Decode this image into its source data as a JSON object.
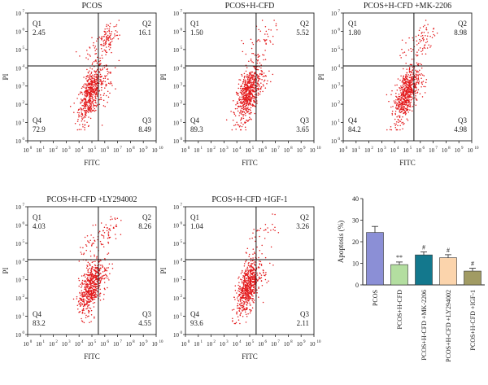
{
  "chart_data": [
    {
      "type": "scatter",
      "title": "PCOS",
      "xlabel": "FITC",
      "ylabel": "PI",
      "axis_scale": "log",
      "xlim": [
        1,
        10000000000
      ],
      "ylim": [
        1,
        10000000
      ],
      "x_ticks": [
        "10",
        "10",
        "10",
        "10",
        "10",
        "10",
        "10",
        "10",
        "10",
        "10",
        "10"
      ],
      "x_tick_exponents": [
        "0",
        "1",
        "2",
        "3",
        "4",
        "5",
        "6",
        "7",
        "8",
        "9",
        "10"
      ],
      "y_ticks": [
        "10",
        "10",
        "10",
        "10",
        "10",
        "10",
        "10",
        "10"
      ],
      "y_tick_exponents": [
        "0",
        "1",
        "2",
        "3",
        "4",
        "5",
        "6",
        "7"
      ],
      "quadrants": [
        {
          "name": "Q1",
          "value": "2.45"
        },
        {
          "name": "Q2",
          "value": "16.1"
        },
        {
          "name": "Q3",
          "value": "8.49"
        },
        {
          "name": "Q4",
          "value": "72.9"
        }
      ],
      "point_color": "#e31a1c",
      "grid": false
    },
    {
      "type": "scatter",
      "title": "PCOS+H-CFD",
      "xlabel": "FITC",
      "ylabel": "PI",
      "axis_scale": "log",
      "xlim": [
        1,
        10000000000
      ],
      "ylim": [
        1,
        10000000
      ],
      "x_ticks": [
        "10",
        "10",
        "10",
        "10",
        "10",
        "10",
        "10",
        "10",
        "10",
        "10",
        "10"
      ],
      "x_tick_exponents": [
        "0",
        "1",
        "2",
        "3",
        "4",
        "5",
        "6",
        "7",
        "8",
        "9",
        "10"
      ],
      "y_ticks": [
        "10",
        "10",
        "10",
        "10",
        "10",
        "10",
        "10",
        "10"
      ],
      "y_tick_exponents": [
        "0",
        "1",
        "2",
        "3",
        "4",
        "5",
        "6",
        "7"
      ],
      "quadrants": [
        {
          "name": "Q1",
          "value": "1.50"
        },
        {
          "name": "Q2",
          "value": "5.52"
        },
        {
          "name": "Q3",
          "value": "3.65"
        },
        {
          "name": "Q4",
          "value": "89.3"
        }
      ],
      "point_color": "#e31a1c",
      "grid": false
    },
    {
      "type": "scatter",
      "title": "PCOS+H-CFD +MK-2206",
      "xlabel": "FITC",
      "ylabel": "PI",
      "axis_scale": "log",
      "xlim": [
        1,
        10000000000
      ],
      "ylim": [
        1,
        10000000
      ],
      "x_ticks": [
        "10",
        "10",
        "10",
        "10",
        "10",
        "10",
        "10",
        "10",
        "10",
        "10",
        "10"
      ],
      "x_tick_exponents": [
        "0",
        "1",
        "2",
        "3",
        "4",
        "5",
        "6",
        "7",
        "8",
        "9",
        "10"
      ],
      "y_ticks": [
        "10",
        "10",
        "10",
        "10",
        "10",
        "10",
        "10",
        "10"
      ],
      "y_tick_exponents": [
        "0",
        "1",
        "2",
        "3",
        "4",
        "5",
        "6",
        "7"
      ],
      "quadrants": [
        {
          "name": "Q1",
          "value": "1.80"
        },
        {
          "name": "Q2",
          "value": "8.98"
        },
        {
          "name": "Q3",
          "value": "4.98"
        },
        {
          "name": "Q4",
          "value": "84.2"
        }
      ],
      "point_color": "#e31a1c",
      "grid": false
    },
    {
      "type": "scatter",
      "title": "PCOS+H-CFD +LY294002",
      "xlabel": "FITC",
      "ylabel": "PI",
      "axis_scale": "log",
      "xlim": [
        1,
        10000000000
      ],
      "ylim": [
        1,
        10000000
      ],
      "x_ticks": [
        "10",
        "10",
        "10",
        "10",
        "10",
        "10",
        "10",
        "10",
        "10",
        "10",
        "10"
      ],
      "x_tick_exponents": [
        "0",
        "1",
        "2",
        "3",
        "4",
        "5",
        "6",
        "7",
        "8",
        "9",
        "10"
      ],
      "y_ticks": [
        "10",
        "10",
        "10",
        "10",
        "10",
        "10",
        "10",
        "10"
      ],
      "y_tick_exponents": [
        "0",
        "1",
        "2",
        "3",
        "4",
        "5",
        "6",
        "7"
      ],
      "quadrants": [
        {
          "name": "Q1",
          "value": "4.03"
        },
        {
          "name": "Q2",
          "value": "8.26"
        },
        {
          "name": "Q3",
          "value": "4.55"
        },
        {
          "name": "Q4",
          "value": "83.2"
        }
      ],
      "point_color": "#e31a1c",
      "grid": false
    },
    {
      "type": "scatter",
      "title": "PCOS+H-CFD +IGF-1",
      "xlabel": "FITC",
      "ylabel": "PI",
      "axis_scale": "log",
      "xlim": [
        1,
        10000000000
      ],
      "ylim": [
        1,
        10000000
      ],
      "x_ticks": [
        "10",
        "10",
        "10",
        "10",
        "10",
        "10",
        "10",
        "10",
        "10",
        "10",
        "10"
      ],
      "x_tick_exponents": [
        "0",
        "1",
        "2",
        "3",
        "4",
        "5",
        "6",
        "7",
        "8",
        "9",
        "10"
      ],
      "y_ticks": [
        "10",
        "10",
        "10",
        "10",
        "10",
        "10",
        "10",
        "10"
      ],
      "y_tick_exponents": [
        "0",
        "1",
        "2",
        "3",
        "4",
        "5",
        "6",
        "7"
      ],
      "quadrants": [
        {
          "name": "Q1",
          "value": "1.04"
        },
        {
          "name": "Q2",
          "value": "3.26"
        },
        {
          "name": "Q3",
          "value": "2.11"
        },
        {
          "name": "Q4",
          "value": "93.6"
        }
      ],
      "point_color": "#e31a1c",
      "grid": false
    },
    {
      "type": "bar",
      "title": "",
      "xlabel": "",
      "ylabel": "Apoptosis (%)",
      "ylim": [
        0,
        40
      ],
      "y_ticks": [
        "0",
        "10",
        "20",
        "30",
        "40"
      ],
      "categories": [
        "PCOS",
        "PCOS+H-CFD",
        "PCOS+H-CFD +MK-2206",
        "PCOS+H-CFD +LY294002",
        "PCOS+H-CFD +IGF-1"
      ],
      "values": [
        24.3,
        9.4,
        13.9,
        12.6,
        6.4
      ],
      "errors": [
        2.8,
        1.2,
        1.4,
        1.4,
        1.3
      ],
      "annotations": [
        "",
        "**",
        "#",
        "#",
        "#"
      ],
      "colors": [
        "#8b8fd6",
        "#b3dea0",
        "#13788d",
        "#fbd4ac",
        "#a19b63"
      ],
      "grid": false
    }
  ]
}
